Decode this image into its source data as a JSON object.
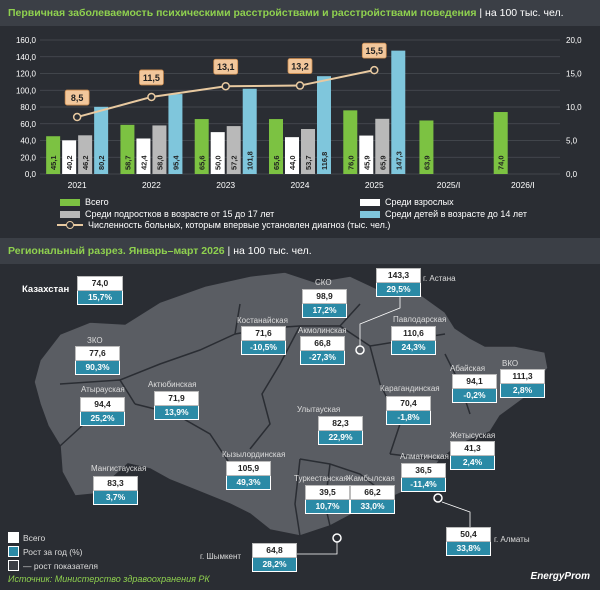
{
  "header1": {
    "title": "Первичная заболеваемость психическими расстройствами и расстройствами поведения",
    "unit": " | на 100 тыс. чел."
  },
  "header2": {
    "title": "Региональный разрез. Январь–март 2026",
    "unit": " | на 100 тыс. чел."
  },
  "chart_data": {
    "type": "bar",
    "categories": [
      "2021",
      "2022",
      "2023",
      "2024",
      "2025",
      "2025/I",
      "2026/I"
    ],
    "ylim_left": [
      0,
      160
    ],
    "ylim_right": [
      0,
      20
    ],
    "y_ticks_left": [
      "0,0",
      "20,0",
      "40,0",
      "60,0",
      "80,0",
      "100,0",
      "120,0",
      "140,0",
      "160,0"
    ],
    "y_ticks_right": [
      "0,0",
      "5,0",
      "10,0",
      "15,0",
      "20,0"
    ],
    "series": [
      {
        "name": "Всего",
        "color": "#7cc242",
        "values": [
          45.1,
          58.7,
          65.6,
          65.6,
          76.0,
          63.9,
          74.0
        ],
        "labels": [
          "45,1",
          "58,7",
          "65,6",
          "65,6",
          "76,0",
          "63,9",
          "74,0"
        ]
      },
      {
        "name": "Среди взрослых",
        "color": "#ffffff",
        "values": [
          40.2,
          42.4,
          50.0,
          44.0,
          45.9,
          null,
          null
        ],
        "labels": [
          "40,2",
          "42,4",
          "50,0",
          "44,0",
          "45,9",
          "",
          ""
        ]
      },
      {
        "name": "Среди подростков в возрасте от 15 до 17 лет",
        "color": "#b9b9b9",
        "values": [
          46.2,
          58.0,
          57.2,
          53.7,
          65.9,
          null,
          null
        ],
        "labels": [
          "46,2",
          "58,0",
          "57,2",
          "53,7",
          "65,9",
          "",
          ""
        ]
      },
      {
        "name": "Среди детей в возрасте до 14 лет",
        "color": "#7fc6dc",
        "values": [
          80.2,
          95.4,
          101.8,
          116.8,
          147.3,
          null,
          null
        ],
        "labels": [
          "80,2",
          "95,4",
          "101,8",
          "116,8",
          "147,3",
          "",
          ""
        ]
      }
    ],
    "line": {
      "name": "Численность больных, которым впервые установлен диагноз (тыс. чел.)",
      "color": "#e8c9a0",
      "values": [
        8.5,
        11.5,
        13.1,
        13.2,
        15.5
      ],
      "labels": [
        "8,5",
        "11,5",
        "13,1",
        "13,2",
        "15,5"
      ]
    },
    "grid": true,
    "legend_position": "bottom"
  },
  "legend": {
    "all": "Всего",
    "adults": "Среди взрослых",
    "teens": "Среди подростков в возрасте от 15 до 17 лет",
    "children": "Среди детей в возрасте до 14 лет",
    "line": "Численность больных, которым впервые установлен диагноз (тыс. чел.)"
  },
  "map": {
    "kazakhstan": {
      "name": "Казахстан",
      "value": "74,0",
      "growth": "15,7%"
    },
    "regions": {
      "sko": {
        "name": "СКО",
        "value": "98,9",
        "growth": "17,2%"
      },
      "astana": {
        "name": "г. Астана",
        "value": "143,3",
        "growth": "29,5%"
      },
      "kostanay": {
        "name": "Костанайская",
        "value": "71,6",
        "growth": "-10,5%"
      },
      "akmola": {
        "name": "Акмолинская",
        "value": "66,8",
        "growth": "-27,3%"
      },
      "pavlodar": {
        "name": "Павлодарская",
        "value": "110,6",
        "growth": "24,3%"
      },
      "zko": {
        "name": "ЗКО",
        "value": "77,6",
        "growth": "90,3%"
      },
      "aktobe": {
        "name": "Актюбинская",
        "value": "71,9",
        "growth": "13,9%"
      },
      "atyrau": {
        "name": "Атырауская",
        "value": "94,4",
        "growth": "25,2%"
      },
      "abai": {
        "name": "Абайская",
        "value": "94,1",
        "growth": "-0,2%"
      },
      "vko": {
        "name": "ВКО",
        "value": "111,3",
        "growth": "2,8%"
      },
      "karaganda": {
        "name": "Карагандинская",
        "value": "70,4",
        "growth": "-1,8%"
      },
      "ulytau": {
        "name": "Улытауская",
        "value": "82,3",
        "growth": "22,9%"
      },
      "zhetysu": {
        "name": "Жетысуская",
        "value": "41,3",
        "growth": "2,4%"
      },
      "almaty_reg": {
        "name": "Алматинская",
        "value": "36,5",
        "growth": "-11,4%"
      },
      "kyzylorda": {
        "name": "Кызылординская",
        "value": "105,9",
        "growth": "49,3%"
      },
      "mangystau": {
        "name": "Мангистауская",
        "value": "83,3",
        "growth": "3,7%"
      },
      "turkestan": {
        "name": "Туркестанская",
        "value": "39,5",
        "growth": "10,7%"
      },
      "zhambyl": {
        "name": "Жамбылская",
        "value": "66,2",
        "growth": "33,0%"
      },
      "almaty": {
        "name": "г. Алматы",
        "value": "50,4",
        "growth": "33,8%"
      },
      "shymkent": {
        "name": "г. Шымкент",
        "value": "64,8",
        "growth": "28,2%"
      }
    },
    "legend": {
      "total": "Всего",
      "growth": "Рост за год (%)",
      "up": "— рост показателя"
    }
  },
  "footer": {
    "source": "Источник: Министерство здравоохранения РК",
    "brand": "EnergyProm"
  }
}
